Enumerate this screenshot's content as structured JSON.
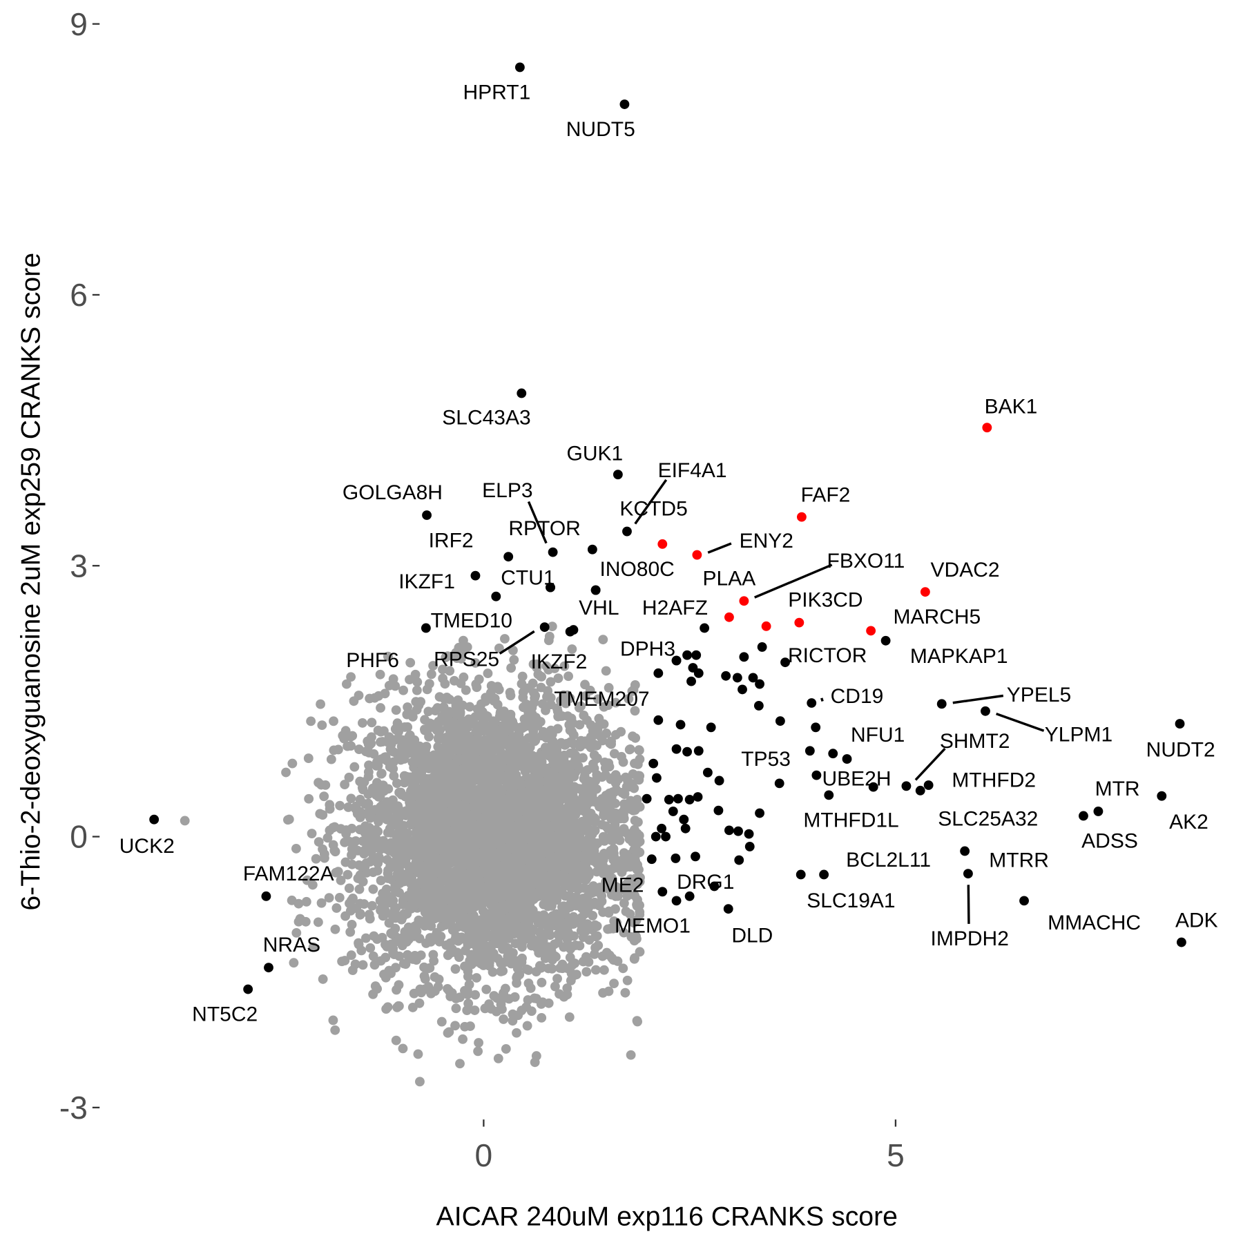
{
  "chart_data": {
    "type": "scatter",
    "title": "",
    "xlabel": "AICAR 240uM exp116 CRANKS score",
    "ylabel": "6-Thio-2-deoxyguanosine 2uM exp259 CRANKS score",
    "xlim": [
      -5.87,
      9.2
    ],
    "ylim": [
      -3.4,
      9.2
    ],
    "xticks": [
      0,
      5
    ],
    "yticks": [
      -3,
      0,
      3,
      6,
      9
    ],
    "grid": false,
    "colors": {
      "background_genes": "#a0a0a0",
      "hit_genes": "#000000",
      "highlight_genes": "#ff0000"
    },
    "labeled_points": [
      {
        "gene": "HPRT1",
        "x": 0.44,
        "y": 8.52,
        "color": "black"
      },
      {
        "gene": "NUDT5",
        "x": 1.71,
        "y": 8.11,
        "color": "black"
      },
      {
        "gene": "SLC43A3",
        "x": 0.46,
        "y": 4.91,
        "color": "black"
      },
      {
        "gene": "BAK1",
        "x": 6.11,
        "y": 4.53,
        "color": "red"
      },
      {
        "gene": "GUK1",
        "x": 1.63,
        "y": 4.01,
        "color": "black"
      },
      {
        "gene": "EIF4A1",
        "x": 1.74,
        "y": 3.38,
        "color": "black"
      },
      {
        "gene": "KCTD5",
        "x": 2.17,
        "y": 3.24,
        "color": "red"
      },
      {
        "gene": "GOLGA8H",
        "x": -0.69,
        "y": 3.56,
        "color": "black"
      },
      {
        "gene": "FAF2",
        "x": 3.86,
        "y": 3.54,
        "color": "red"
      },
      {
        "gene": "ELP3",
        "x": 0.84,
        "y": 3.15,
        "color": "black"
      },
      {
        "gene": "RPTOR",
        "x": 1.32,
        "y": 3.18,
        "color": "black"
      },
      {
        "gene": "IRF2",
        "x": 0.3,
        "y": 3.1,
        "color": "black"
      },
      {
        "gene": "IKZF1",
        "x": -0.1,
        "y": 2.89,
        "color": "black"
      },
      {
        "gene": "INO80C",
        "x": 1.36,
        "y": 2.73,
        "color": "black"
      },
      {
        "gene": "ENY2",
        "x": 2.59,
        "y": 3.12,
        "color": "red"
      },
      {
        "gene": "CTU1",
        "x": 0.15,
        "y": 2.66,
        "color": "black"
      },
      {
        "gene": "FBXO11",
        "x": 3.16,
        "y": 2.61,
        "color": "red"
      },
      {
        "gene": "PLAA",
        "x": 2.98,
        "y": 2.43,
        "color": "red"
      },
      {
        "gene": "PIK3CD",
        "x": 3.83,
        "y": 2.37,
        "color": "red"
      },
      {
        "gene": "VDAC2",
        "x": 5.36,
        "y": 2.71,
        "color": "red"
      },
      {
        "gene": "MARCH5",
        "x": 4.7,
        "y": 2.28,
        "color": "red"
      },
      {
        "gene": "MAPKAP1",
        "x": 4.88,
        "y": 2.17,
        "color": "black"
      },
      {
        "gene": "H2AFZ",
        "x": 2.68,
        "y": 2.31,
        "color": "black"
      },
      {
        "gene": "PHF6",
        "x": -0.7,
        "y": 2.31,
        "color": "black"
      },
      {
        "gene": "TMED10",
        "x": 0.81,
        "y": 2.76,
        "color": "black"
      },
      {
        "gene": "RPS25",
        "x": 0.74,
        "y": 2.32,
        "color": "black"
      },
      {
        "gene": "VHL",
        "x": 1.09,
        "y": 2.29,
        "color": "black"
      },
      {
        "gene": "IKZF2",
        "x": 1.05,
        "y": 2.27,
        "color": "black"
      },
      {
        "gene": "DPH3",
        "x": 2.34,
        "y": 1.95,
        "color": "black"
      },
      {
        "gene": "RICTOR",
        "x": 3.66,
        "y": 1.93,
        "color": "black"
      },
      {
        "gene": "CD19",
        "x": 3.98,
        "y": 1.48,
        "color": "black"
      },
      {
        "gene": "TMEM207",
        "x": 2.12,
        "y": 1.29,
        "color": "black"
      },
      {
        "gene": "YPEL5",
        "x": 5.56,
        "y": 1.47,
        "color": "black"
      },
      {
        "gene": "YLPM1",
        "x": 6.09,
        "y": 1.39,
        "color": "black"
      },
      {
        "gene": "NUDT2",
        "x": 8.45,
        "y": 1.25,
        "color": "black"
      },
      {
        "gene": "NFU1",
        "x": 4.03,
        "y": 1.21,
        "color": "black"
      },
      {
        "gene": "SHMT2",
        "x": 5.13,
        "y": 0.56,
        "color": "black"
      },
      {
        "gene": "TP53",
        "x": 3.59,
        "y": 0.59,
        "color": "black"
      },
      {
        "gene": "UBE2H",
        "x": 4.73,
        "y": 0.55,
        "color": "black"
      },
      {
        "gene": "MTHFD2",
        "x": 5.4,
        "y": 0.57,
        "color": "black"
      },
      {
        "gene": "MTHFD1L",
        "x": 4.19,
        "y": 0.46,
        "color": "black"
      },
      {
        "gene": "MTR",
        "x": 7.46,
        "y": 0.28,
        "color": "black"
      },
      {
        "gene": "AK2",
        "x": 8.23,
        "y": 0.45,
        "color": "black"
      },
      {
        "gene": "ADSS",
        "x": 7.28,
        "y": 0.23,
        "color": "black"
      },
      {
        "gene": "SLC25A32",
        "x": 5.3,
        "y": 0.51,
        "color": "black"
      },
      {
        "gene": "UCK2",
        "x": -4.0,
        "y": 0.19,
        "color": "black"
      },
      {
        "gene": "BCL2L11",
        "x": 4.13,
        "y": -0.42,
        "color": "black"
      },
      {
        "gene": "SLC19A1",
        "x": 3.85,
        "y": -0.42,
        "color": "black"
      },
      {
        "gene": "MTRR",
        "x": 5.84,
        "y": -0.16,
        "color": "black"
      },
      {
        "gene": "IMPDH2",
        "x": 5.88,
        "y": -0.41,
        "color": "black"
      },
      {
        "gene": "MMACHC",
        "x": 6.56,
        "y": -0.71,
        "color": "black"
      },
      {
        "gene": "ADK",
        "x": 8.47,
        "y": -1.17,
        "color": "black"
      },
      {
        "gene": "ME2",
        "x": 2.17,
        "y": -0.61,
        "color": "black"
      },
      {
        "gene": "DRG1",
        "x": 2.8,
        "y": -0.55,
        "color": "black"
      },
      {
        "gene": "MEMO1",
        "x": 2.34,
        "y": -0.71,
        "color": "black"
      },
      {
        "gene": "DLD",
        "x": 2.97,
        "y": -0.8,
        "color": "black"
      },
      {
        "gene": "FAM122A",
        "x": -2.64,
        "y": -0.66,
        "color": "black"
      },
      {
        "gene": "NRAS",
        "x": -2.61,
        "y": -1.45,
        "color": "black"
      },
      {
        "gene": "NT5C2",
        "x": -2.86,
        "y": -1.69,
        "color": "black"
      }
    ],
    "unlabeled_hits": [
      [
        2.12,
        1.81
      ],
      [
        2.34,
        1.95
      ],
      [
        2.47,
        2.01
      ],
      [
        2.58,
        2.01
      ],
      [
        2.54,
        1.87
      ],
      [
        2.61,
        1.81
      ],
      [
        2.52,
        1.72
      ],
      [
        2.94,
        1.78
      ],
      [
        3.08,
        1.76
      ],
      [
        3.16,
        1.99
      ],
      [
        3.27,
        1.76
      ],
      [
        3.35,
        1.69
      ],
      [
        3.14,
        1.63
      ],
      [
        3.38,
        2.1
      ],
      [
        3.34,
        1.45
      ],
      [
        3.6,
        1.28
      ],
      [
        2.39,
        1.24
      ],
      [
        2.76,
        1.21
      ],
      [
        2.34,
        0.97
      ],
      [
        2.47,
        0.94
      ],
      [
        2.61,
        0.95
      ],
      [
        2.06,
        0.81
      ],
      [
        2.72,
        0.71
      ],
      [
        2.86,
        0.62
      ],
      [
        2.1,
        0.65
      ],
      [
        1.98,
        0.42
      ],
      [
        2.25,
        0.41
      ],
      [
        2.36,
        0.42
      ],
      [
        2.5,
        0.41
      ],
      [
        2.6,
        0.44
      ],
      [
        2.3,
        0.28
      ],
      [
        2.43,
        0.19
      ],
      [
        2.45,
        0.09
      ],
      [
        2.16,
        0.09
      ],
      [
        2.09,
        0.0
      ],
      [
        2.21,
        0.0
      ],
      [
        2.04,
        -0.25
      ],
      [
        2.33,
        -0.24
      ],
      [
        2.57,
        -0.22
      ],
      [
        2.85,
        0.29
      ],
      [
        2.98,
        0.07
      ],
      [
        3.09,
        0.06
      ],
      [
        3.22,
        0.03
      ],
      [
        3.23,
        -0.11
      ],
      [
        3.1,
        -0.26
      ],
      [
        3.96,
        0.95
      ],
      [
        4.24,
        0.92
      ],
      [
        4.41,
        0.86
      ],
      [
        4.04,
        0.68
      ],
      [
        3.35,
        0.26
      ],
      [
        2.5,
        -0.66
      ],
      [
        1.36,
        2.73
      ],
      [
        0.81,
        2.76
      ]
    ],
    "unlabeled_highlights": [
      [
        3.43,
        2.33
      ]
    ],
    "background_cloud": {
      "center": [
        0.1,
        0.0
      ],
      "sd": [
        0.85,
        0.8
      ],
      "count": 4000
    }
  }
}
